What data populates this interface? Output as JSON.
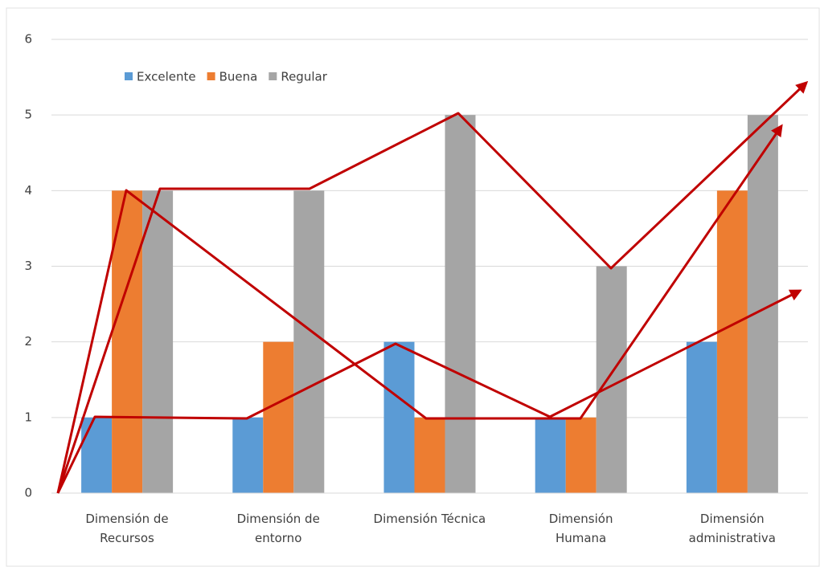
{
  "chart_data": {
    "type": "bar",
    "categories": [
      "Dimensión de\nRecursos",
      "Dimensión de\nentorno",
      "Dimensión Técnica",
      "Dimensión\nHumana",
      "Dimensión\nadministrativa"
    ],
    "series": [
      {
        "name": "Excelente",
        "color": "#5b9bd5",
        "values": [
          1,
          1,
          2,
          1,
          2
        ]
      },
      {
        "name": "Buena",
        "color": "#ed7d31",
        "values": [
          4,
          2,
          1,
          1,
          4
        ]
      },
      {
        "name": "Regular",
        "color": "#a5a5a5",
        "values": [
          4,
          4,
          5,
          3,
          5
        ]
      }
    ],
    "ylim": [
      0,
      6
    ],
    "yticks": [
      0,
      1,
      2,
      3,
      4,
      5,
      6
    ],
    "grid": true,
    "legend": "top"
  }
}
